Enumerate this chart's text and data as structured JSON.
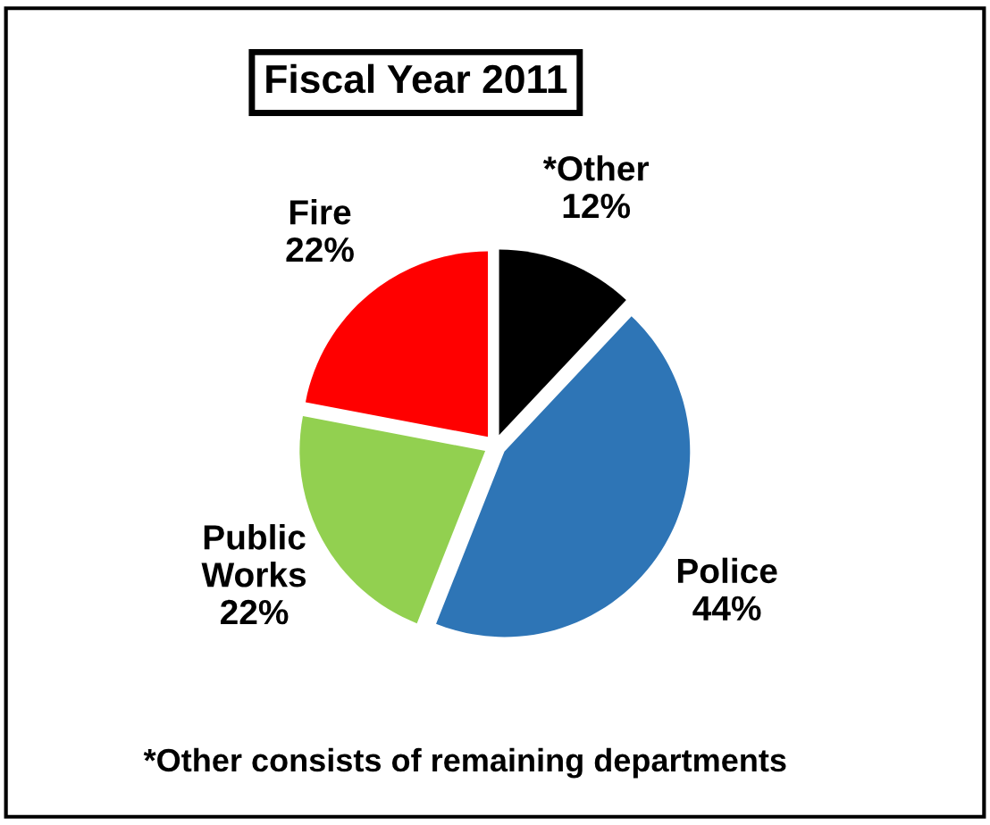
{
  "chart_data": {
    "type": "pie",
    "title": "Fiscal Year 2011",
    "categories": [
      "*Other",
      "Police",
      "Public Works",
      "Fire"
    ],
    "values": [
      12,
      44,
      22,
      22
    ],
    "value_labels": [
      "12%",
      "44%",
      "22%",
      "22%"
    ],
    "colors": [
      "#000000",
      "#2e75b6",
      "#92d050",
      "#ff0000"
    ],
    "annotations": [
      "*Other consists of remaining departments"
    ],
    "legend": false
  }
}
